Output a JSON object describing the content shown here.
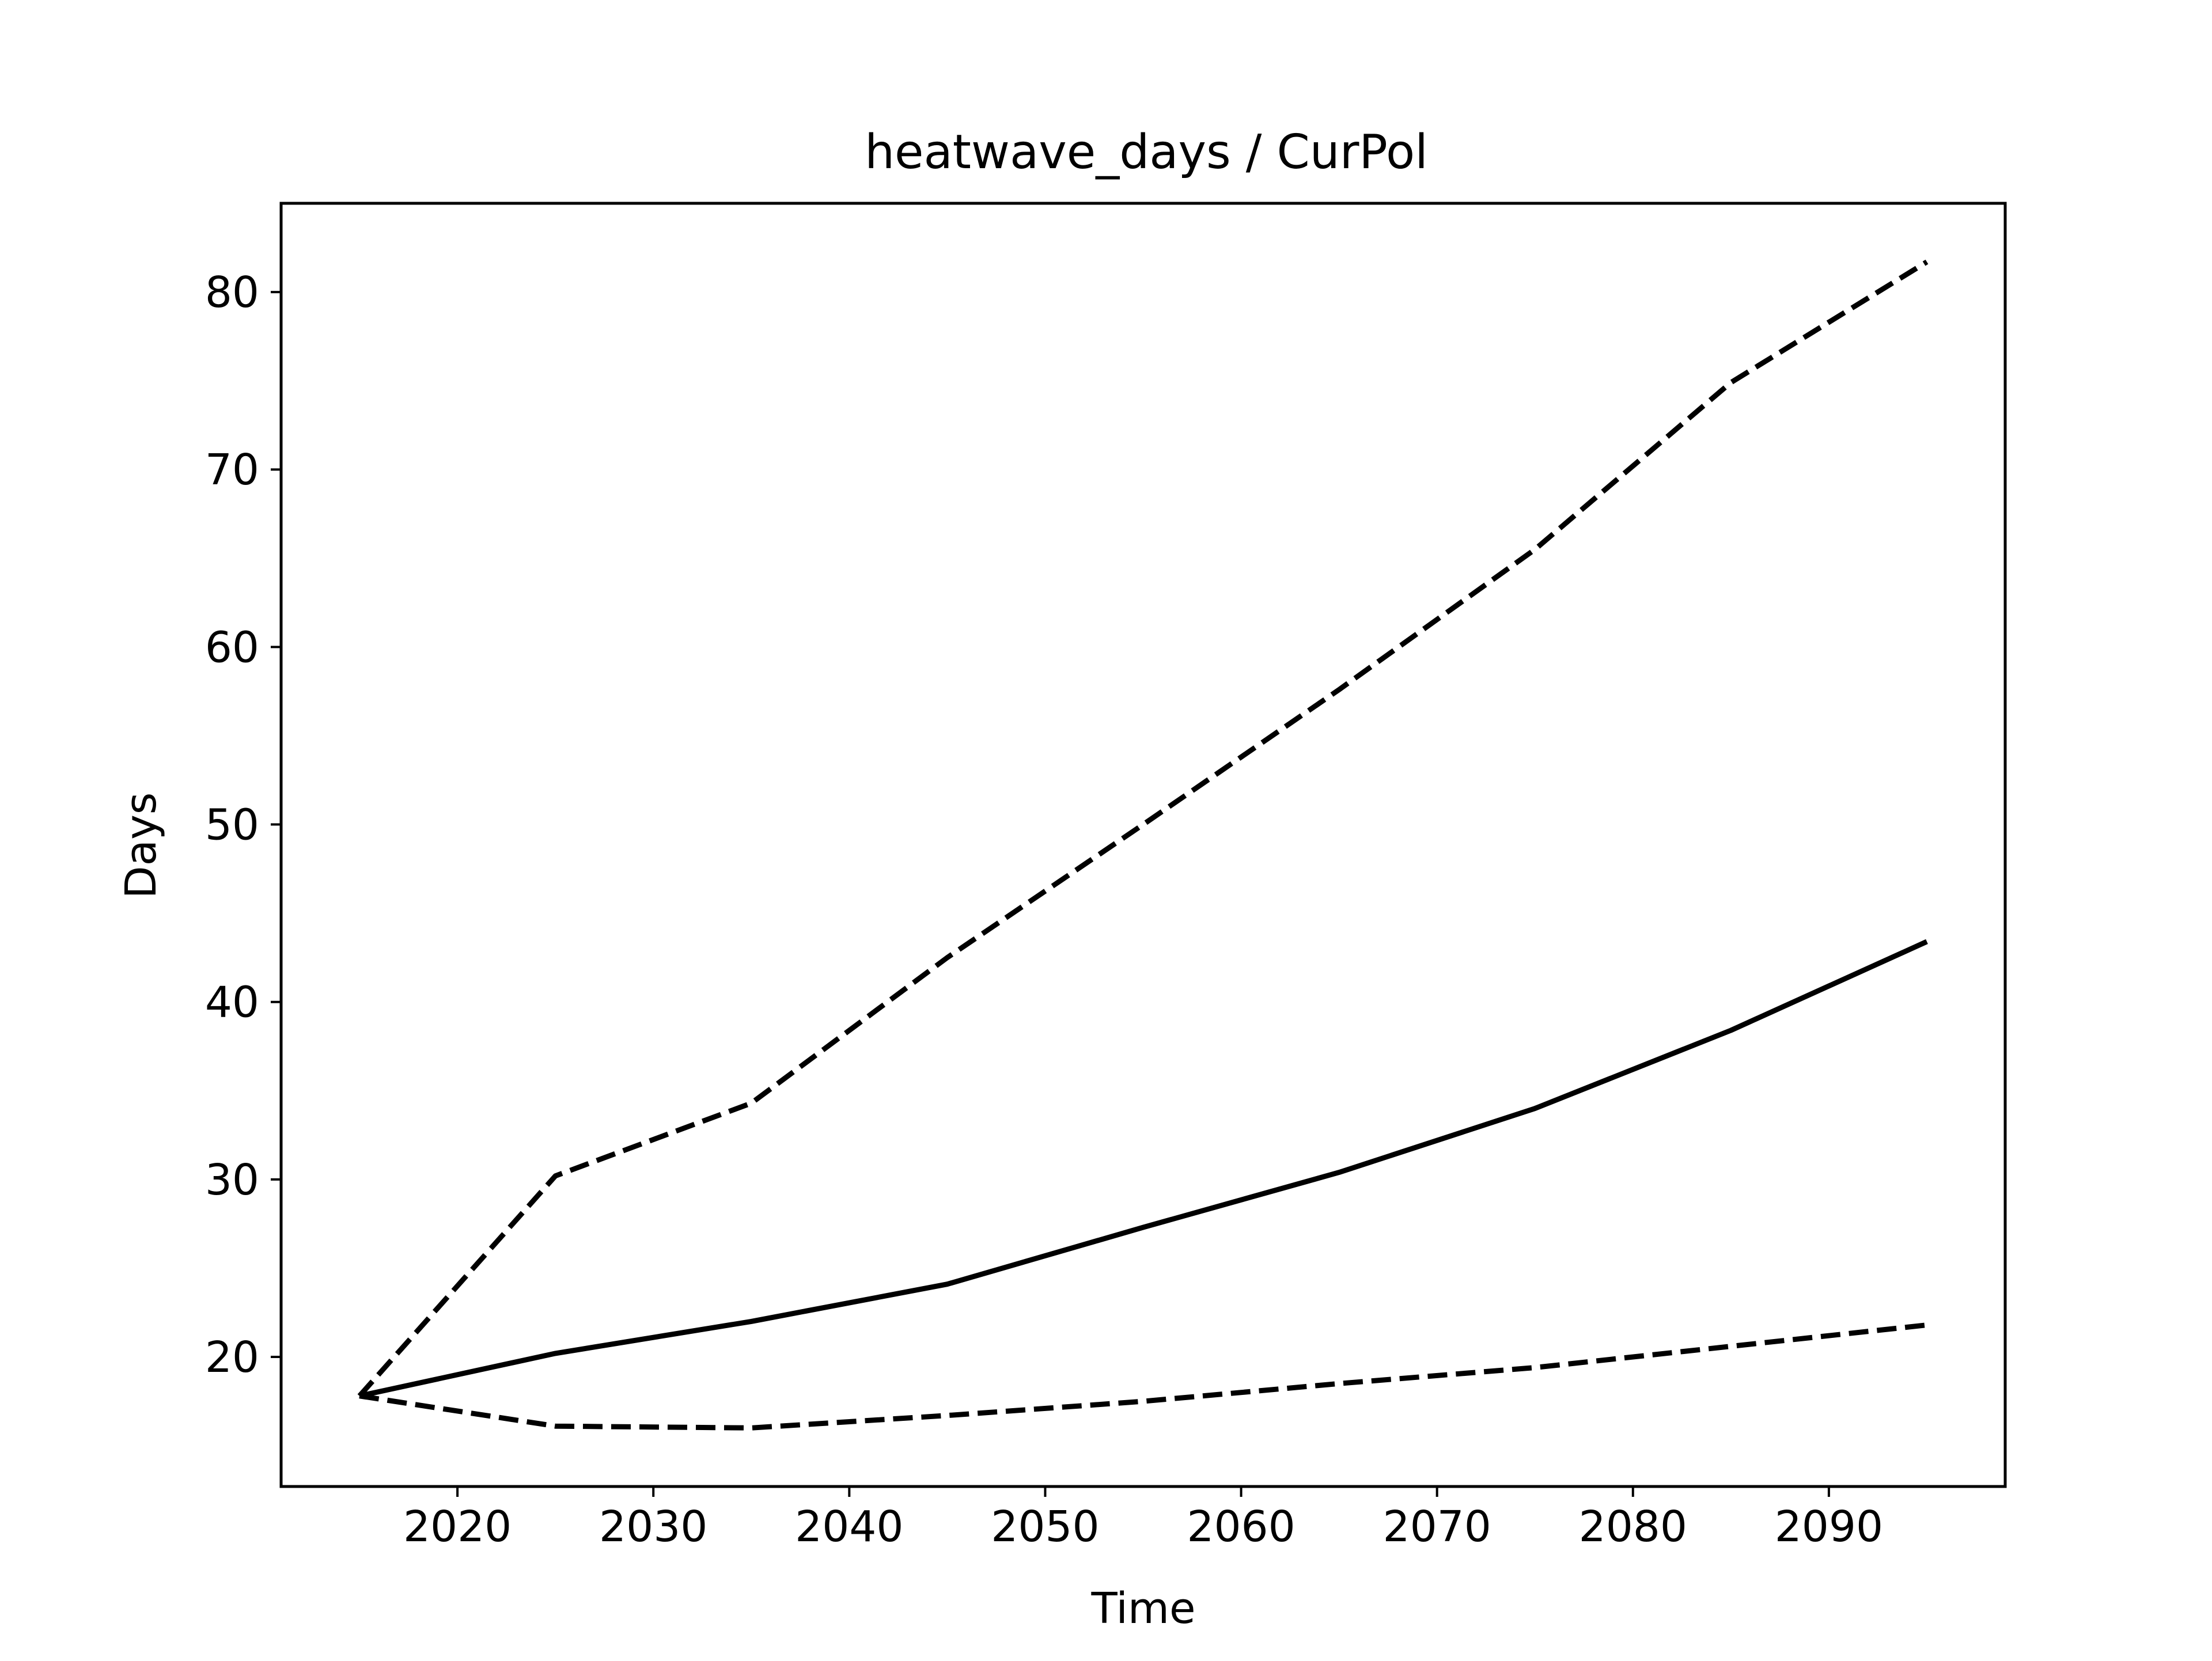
{
  "chart_data": {
    "type": "line",
    "title": "heatwave_days / CurPol",
    "xlabel": "Time",
    "ylabel": "Days",
    "x": [
      2015,
      2025,
      2035,
      2045,
      2055,
      2065,
      2075,
      2085,
      2095
    ],
    "xlim": [
      2011,
      2099
    ],
    "ylim": [
      12.7,
      85
    ],
    "xticks": [
      2020,
      2030,
      2040,
      2050,
      2060,
      2070,
      2080,
      2090
    ],
    "yticks": [
      20,
      30,
      40,
      50,
      60,
      70,
      80
    ],
    "grid": false,
    "line_color": "#000000",
    "series": [
      {
        "style": "dashed",
        "values": [
          17.8,
          30.2,
          34.3,
          42.5,
          50.0,
          57.6,
          65.5,
          74.9,
          81.7
        ]
      },
      {
        "style": "solid",
        "values": [
          17.8,
          20.2,
          22.0,
          24.1,
          27.3,
          30.4,
          34.0,
          38.4,
          43.4
        ]
      },
      {
        "style": "dashed",
        "values": [
          17.8,
          16.1,
          16.0,
          16.7,
          17.5,
          18.5,
          19.4,
          20.6,
          21.8
        ]
      }
    ]
  }
}
